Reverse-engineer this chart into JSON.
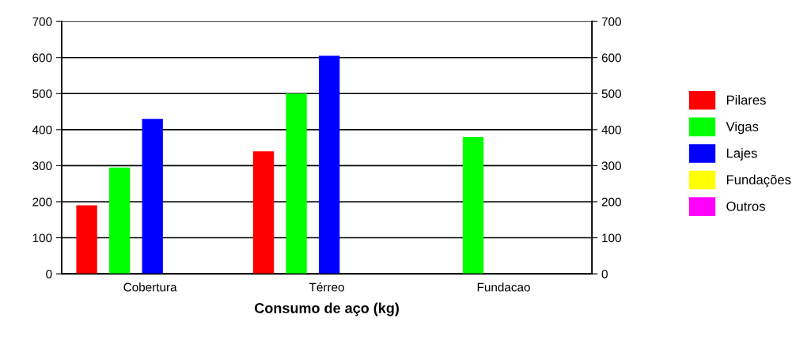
{
  "chart_data": {
    "type": "bar",
    "xlabel": "Consumo de aço (kg)",
    "categories": [
      "Cobertura",
      "Térreo",
      "Fundacao"
    ],
    "series": [
      {
        "name": "Pilares",
        "color": "#ff0000",
        "values": [
          190,
          340,
          0
        ]
      },
      {
        "name": "Vigas",
        "color": "#00ff00",
        "values": [
          295,
          500,
          380
        ]
      },
      {
        "name": "Lajes",
        "color": "#0000ff",
        "values": [
          430,
          605,
          0
        ]
      },
      {
        "name": "Fundações",
        "color": "#ffff00",
        "values": [
          0,
          0,
          0
        ]
      },
      {
        "name": "Outros",
        "color": "#ff00ff",
        "values": [
          0,
          0,
          0
        ]
      }
    ],
    "ylim": [
      0,
      700
    ],
    "yticks": [
      0,
      100,
      200,
      300,
      400,
      500,
      600,
      700
    ],
    "y2lim": [
      0,
      700
    ],
    "y2ticks": [
      0,
      100,
      200,
      300,
      400,
      500,
      600,
      700
    ],
    "grid": true,
    "legend": "right"
  }
}
